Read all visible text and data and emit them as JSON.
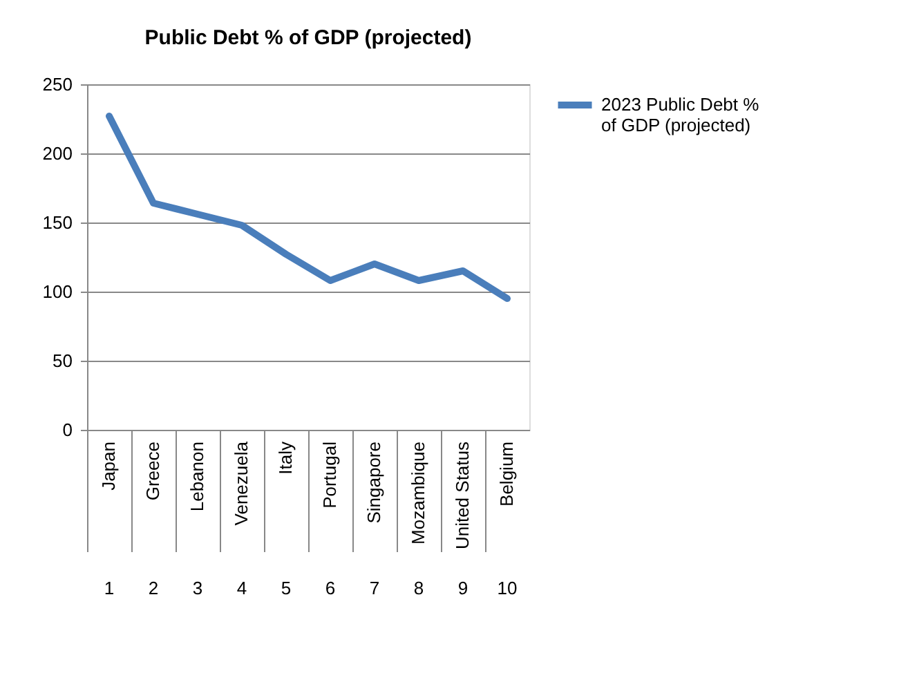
{
  "chart_data": {
    "type": "line",
    "title": "Public Debt % of GDP (projected)",
    "categories": [
      "Japan",
      "Greece",
      "Lebanon",
      "Venezuela",
      "Italy",
      "Portugal",
      "Singapore",
      "Mozambique",
      "United Status",
      "Belgium"
    ],
    "series": [
      {
        "name": "2023  Public Debt % of GDP (projected)",
        "color": "#4a7ebb",
        "values": [
          227,
          164,
          156,
          148,
          127,
          108,
          120,
          108,
          115,
          95
        ]
      }
    ],
    "annotations": [
      "1",
      "2",
      "3",
      "4",
      "5",
      "6",
      "7",
      "8",
      "9",
      "10"
    ],
    "ylim": [
      0,
      250
    ],
    "yticks": [
      0,
      50,
      100,
      150,
      200,
      250
    ],
    "grid": "y",
    "legend": "right",
    "marker": "none",
    "line_style": "solid"
  }
}
